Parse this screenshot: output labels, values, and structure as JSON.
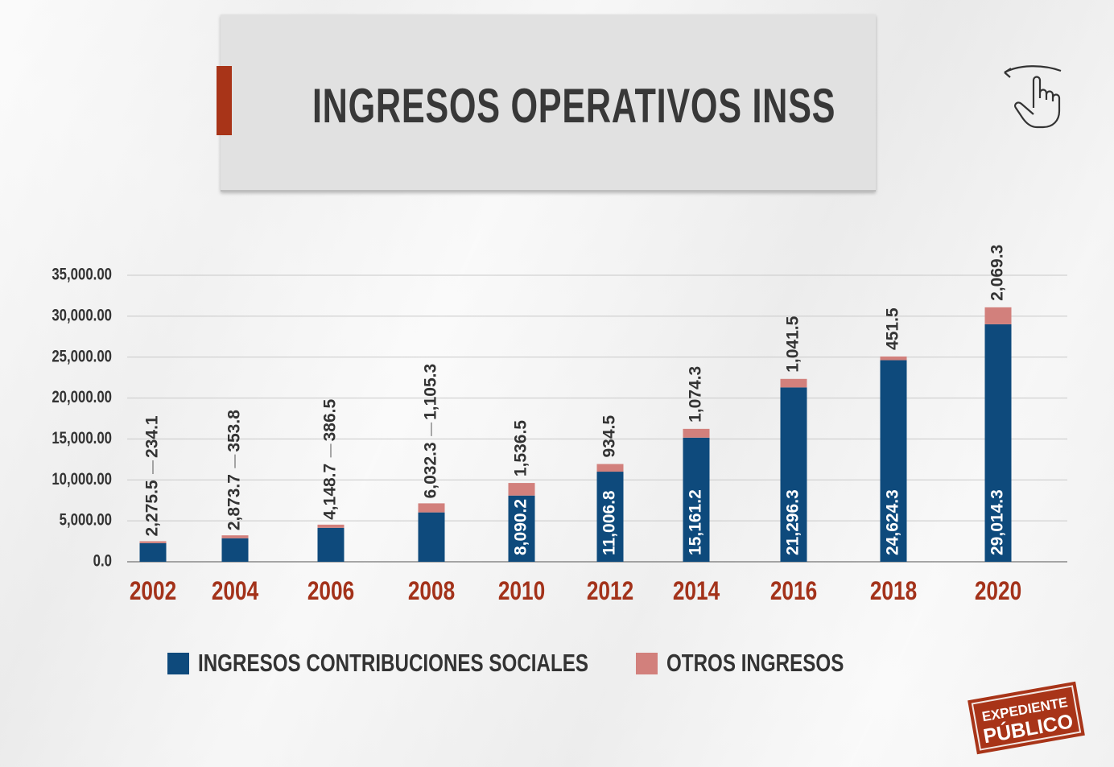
{
  "title": "INGRESOS OPERATIVOS INSS",
  "icon": "swipe-hand-icon",
  "logo": {
    "line1": "EXPEDIENTE",
    "line2": "PÚBLICO"
  },
  "colors": {
    "contribuciones": "#0e4a7c",
    "otros": "#d2807c",
    "year_label": "#a3321a",
    "accent": "#a83418",
    "text": "#333333"
  },
  "chart_data": {
    "type": "bar",
    "stacked": true,
    "title": "INGRESOS OPERATIVOS INSS",
    "categories": [
      "2002",
      "2004",
      "2006",
      "2008",
      "2010",
      "2012",
      "2014",
      "2016",
      "2018",
      "2020"
    ],
    "series": [
      {
        "name": "INGRESOS CONTRIBUCIONES SOCIALES",
        "values": [
          2275.5,
          2873.7,
          4148.7,
          6032.3,
          8090.2,
          11006.8,
          15161.2,
          21296.3,
          24624.3,
          29014.3
        ],
        "labels": [
          "2,275.5",
          "2,873.7",
          "4,148.7",
          "6,032.3",
          "8,090.2",
          "11,006.8",
          "15,161.2",
          "21,296.3",
          "24,624.3",
          "29,014.3"
        ]
      },
      {
        "name": "OTROS INGRESOS",
        "values": [
          234.1,
          353.8,
          386.5,
          1105.3,
          1536.5,
          934.5,
          1074.3,
          1041.5,
          451.5,
          2069.3
        ],
        "labels": [
          "234.1",
          "353.8",
          "386.5",
          "1,105.3",
          "1,536.5",
          "934.5",
          "1,074.3",
          "1,041.5",
          "451.5",
          "2,069.3"
        ]
      }
    ],
    "yticks": [
      0,
      5000,
      10000,
      15000,
      20000,
      25000,
      30000,
      35000
    ],
    "ytick_labels": [
      "0.0",
      "5,000.00",
      "10,000.00",
      "15,000.00",
      "20,000.00",
      "25,000.00",
      "30,000.00",
      "35,000.00"
    ],
    "ylim": [
      0,
      35000
    ],
    "grid": true,
    "legend": "bottom"
  }
}
